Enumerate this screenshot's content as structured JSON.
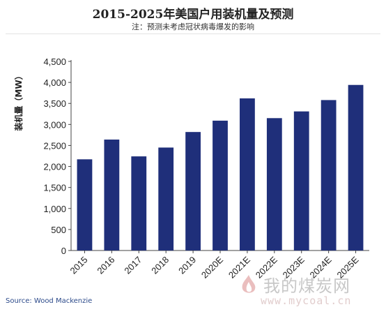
{
  "chart_data": {
    "type": "bar",
    "title": "2015-2025年美国户用装机量及预测",
    "subtitle": "注：预测未考虑冠状病毒爆发的影响",
    "ylabel": "装机量（MW）",
    "xlabel": "",
    "categories": [
      "2015",
      "2016",
      "2017",
      "2018",
      "2019",
      "2020E",
      "2021E",
      "2022E",
      "2023E",
      "2024E",
      "2025E"
    ],
    "values": [
      2170,
      2640,
      2240,
      2450,
      2820,
      3090,
      3620,
      3150,
      3310,
      3580,
      3940
    ],
    "ylim": [
      0,
      4500
    ],
    "yticks": [
      0,
      500,
      1000,
      1500,
      2000,
      2500,
      3000,
      3500,
      4000,
      4500
    ],
    "ytick_labels": [
      "0",
      "500",
      "1,000",
      "1,500",
      "2,000",
      "2,500",
      "3,000",
      "3,500",
      "4,000",
      "4,500"
    ],
    "bar_color": "#1f2f7a",
    "grid": false,
    "legend": "none"
  },
  "source": "Source: Wood Mackenzie",
  "watermark": {
    "name": "我的煤炭网",
    "url": "www.mycoal.cn"
  }
}
